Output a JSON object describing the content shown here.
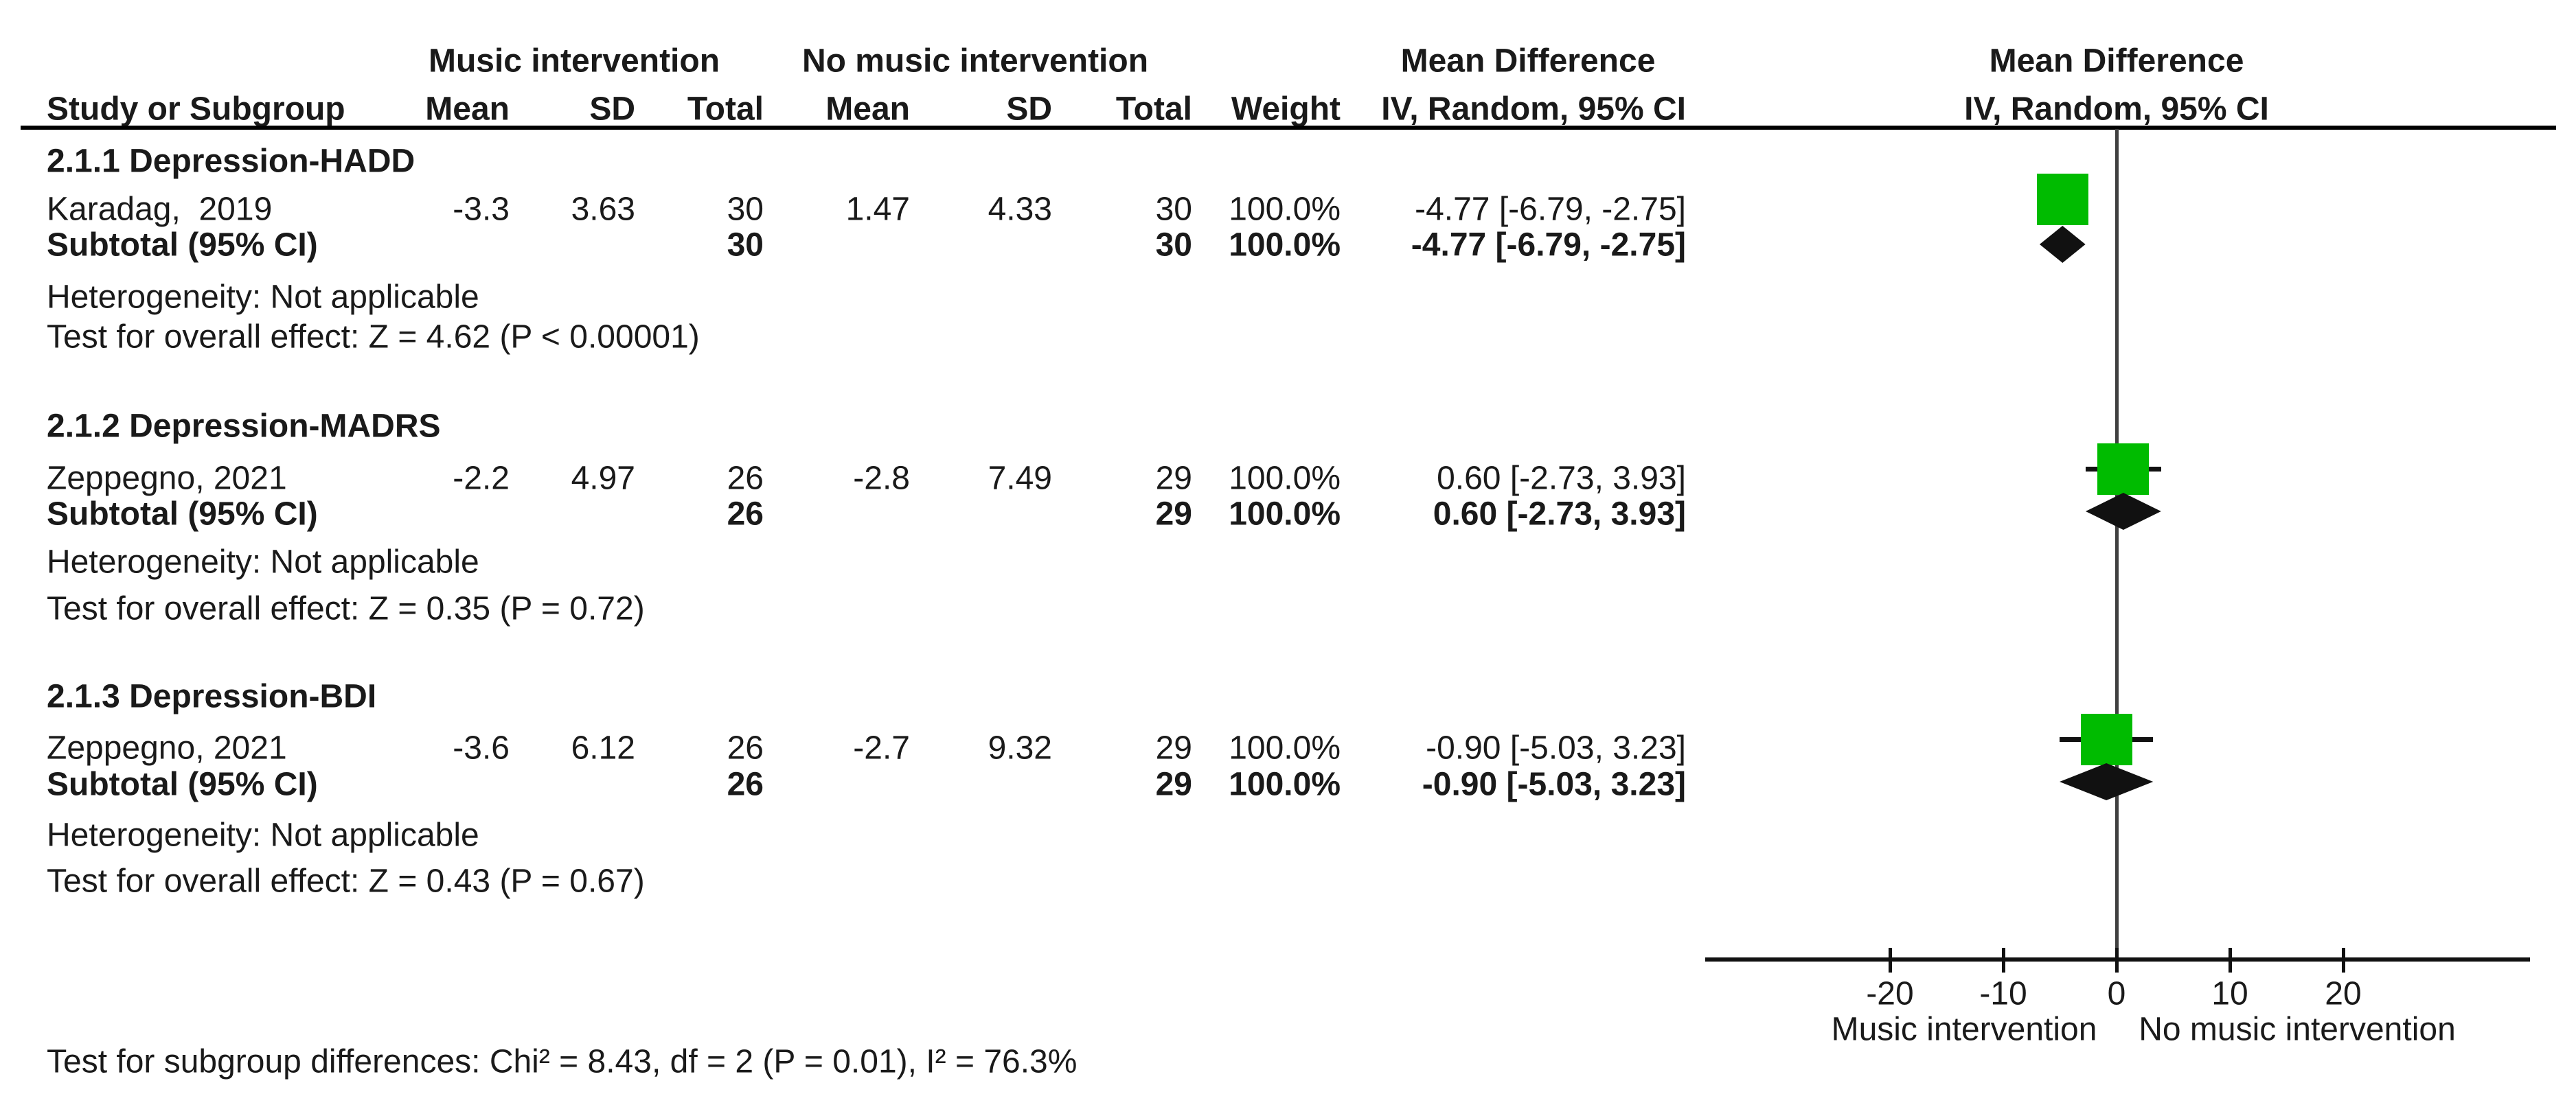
{
  "headers": {
    "music_group": "Music intervention",
    "no_music_group": "No music intervention",
    "md_left": "Mean Difference",
    "md_right": "Mean Difference",
    "study_or_subgroup": "Study or Subgroup",
    "mean1": "Mean",
    "sd1": "SD",
    "total1": "Total",
    "mean2": "Mean",
    "sd2": "SD",
    "total2": "Total",
    "weight": "Weight",
    "iv_ci": "IV, Random, 95% CI",
    "iv_ci_plot": "IV, Random, 95% CI"
  },
  "groups": [
    {
      "title": "2.1.1 Depression-HADD",
      "study": {
        "label": "Karadag,  2019",
        "mean1": "-3.3",
        "sd1": "3.63",
        "total1": "30",
        "mean2": "1.47",
        "sd2": "4.33",
        "total2": "30",
        "weight": "100.0%",
        "ci": "-4.77 [-6.79, -2.75]",
        "md": -4.77,
        "lo": -6.79,
        "hi": -2.75
      },
      "subtotal": {
        "label": "Subtotal (95% CI)",
        "total1": "30",
        "total2": "30",
        "weight": "100.0%",
        "ci": "-4.77 [-6.79, -2.75]",
        "md": -4.77,
        "lo": -6.79,
        "hi": -2.75
      },
      "heterogeneity": "Heterogeneity: Not applicable",
      "test": "Test for overall effect: Z = 4.62 (P < 0.00001)"
    },
    {
      "title": "2.1.2 Depression-MADRS",
      "study": {
        "label": "Zeppegno, 2021",
        "mean1": "-2.2",
        "sd1": "4.97",
        "total1": "26",
        "mean2": "-2.8",
        "sd2": "7.49",
        "total2": "29",
        "weight": "100.0%",
        "ci": "0.60 [-2.73, 3.93]",
        "md": 0.6,
        "lo": -2.73,
        "hi": 3.93
      },
      "subtotal": {
        "label": "Subtotal (95% CI)",
        "total1": "26",
        "total2": "29",
        "weight": "100.0%",
        "ci": "0.60 [-2.73, 3.93]",
        "md": 0.6,
        "lo": -2.73,
        "hi": 3.93
      },
      "heterogeneity": "Heterogeneity: Not applicable",
      "test": "Test for overall effect: Z = 0.35 (P = 0.72)"
    },
    {
      "title": "2.1.3 Depression-BDI",
      "study": {
        "label": "Zeppegno, 2021",
        "mean1": "-3.6",
        "sd1": "6.12",
        "total1": "26",
        "mean2": "-2.7",
        "sd2": "9.32",
        "total2": "29",
        "weight": "100.0%",
        "ci": "-0.90 [-5.03, 3.23]",
        "md": -0.9,
        "lo": -5.03,
        "hi": 3.23
      },
      "subtotal": {
        "label": "Subtotal (95% CI)",
        "total1": "26",
        "total2": "29",
        "weight": "100.0%",
        "ci": "-0.90 [-5.03, 3.23]",
        "md": -0.9,
        "lo": -5.03,
        "hi": 3.23
      },
      "heterogeneity": "Heterogeneity: Not applicable",
      "test": "Test for overall effect: Z = 0.43 (P = 0.67)"
    }
  ],
  "axis": {
    "ticks": [
      -20,
      -10,
      0,
      10,
      20
    ],
    "label_left": "Music intervention",
    "label_right": "No music intervention"
  },
  "footer": {
    "text": "Test for subgroup differences: Chi² = 8.43, df = 2 (P = 0.01), I² = 76.3%"
  },
  "colors": {
    "square_green": "#00bb00",
    "diamond_black": "#111111",
    "zero_line_gray": "#404040",
    "axis_black": "#111111",
    "text_black": "#1a1a1a"
  },
  "chart_data": {
    "type": "forest",
    "effect_measure": "Mean Difference",
    "model": "IV, Random, 95% CI",
    "x_axis": {
      "ticks": [
        -20,
        -10,
        0,
        10,
        20
      ],
      "range_drawn": [
        -36,
        36
      ],
      "label_left": "Music intervention",
      "label_right": "No music intervention"
    },
    "subgroups": [
      {
        "name": "2.1.1 Depression-HADD",
        "studies": [
          {
            "study": "Karadag, 2019",
            "music": {
              "mean": -3.3,
              "sd": 3.63,
              "total": 30
            },
            "no_music": {
              "mean": 1.47,
              "sd": 4.33,
              "total": 30
            },
            "weight_pct": 100.0,
            "md": -4.77,
            "ci95": [
              -6.79,
              -2.75
            ]
          }
        ],
        "subtotal": {
          "total_music": 30,
          "total_no_music": 30,
          "weight_pct": 100.0,
          "md": -4.77,
          "ci95": [
            -6.79,
            -2.75
          ]
        },
        "heterogeneity": "Not applicable",
        "overall_effect": {
          "Z": 4.62,
          "P": "< 0.00001"
        }
      },
      {
        "name": "2.1.2 Depression-MADRS",
        "studies": [
          {
            "study": "Zeppegno, 2021",
            "music": {
              "mean": -2.2,
              "sd": 4.97,
              "total": 26
            },
            "no_music": {
              "mean": -2.8,
              "sd": 7.49,
              "total": 29
            },
            "weight_pct": 100.0,
            "md": 0.6,
            "ci95": [
              -2.73,
              3.93
            ]
          }
        ],
        "subtotal": {
          "total_music": 26,
          "total_no_music": 29,
          "weight_pct": 100.0,
          "md": 0.6,
          "ci95": [
            -2.73,
            3.93
          ]
        },
        "heterogeneity": "Not applicable",
        "overall_effect": {
          "Z": 0.35,
          "P": "= 0.72"
        }
      },
      {
        "name": "2.1.3 Depression-BDI",
        "studies": [
          {
            "study": "Zeppegno, 2021",
            "music": {
              "mean": -3.6,
              "sd": 6.12,
              "total": 26
            },
            "no_music": {
              "mean": -2.7,
              "sd": 9.32,
              "total": 29
            },
            "weight_pct": 100.0,
            "md": -0.9,
            "ci95": [
              -5.03,
              3.23
            ]
          }
        ],
        "subtotal": {
          "total_music": 26,
          "total_no_music": 29,
          "weight_pct": 100.0,
          "md": -0.9,
          "ci95": [
            -5.03,
            3.23
          ]
        },
        "heterogeneity": "Not applicable",
        "overall_effect": {
          "Z": 0.43,
          "P": "= 0.67"
        }
      }
    ],
    "subgroup_differences": {
      "Chi2": 8.43,
      "df": 2,
      "P": 0.01,
      "I2_pct": 76.3
    }
  }
}
